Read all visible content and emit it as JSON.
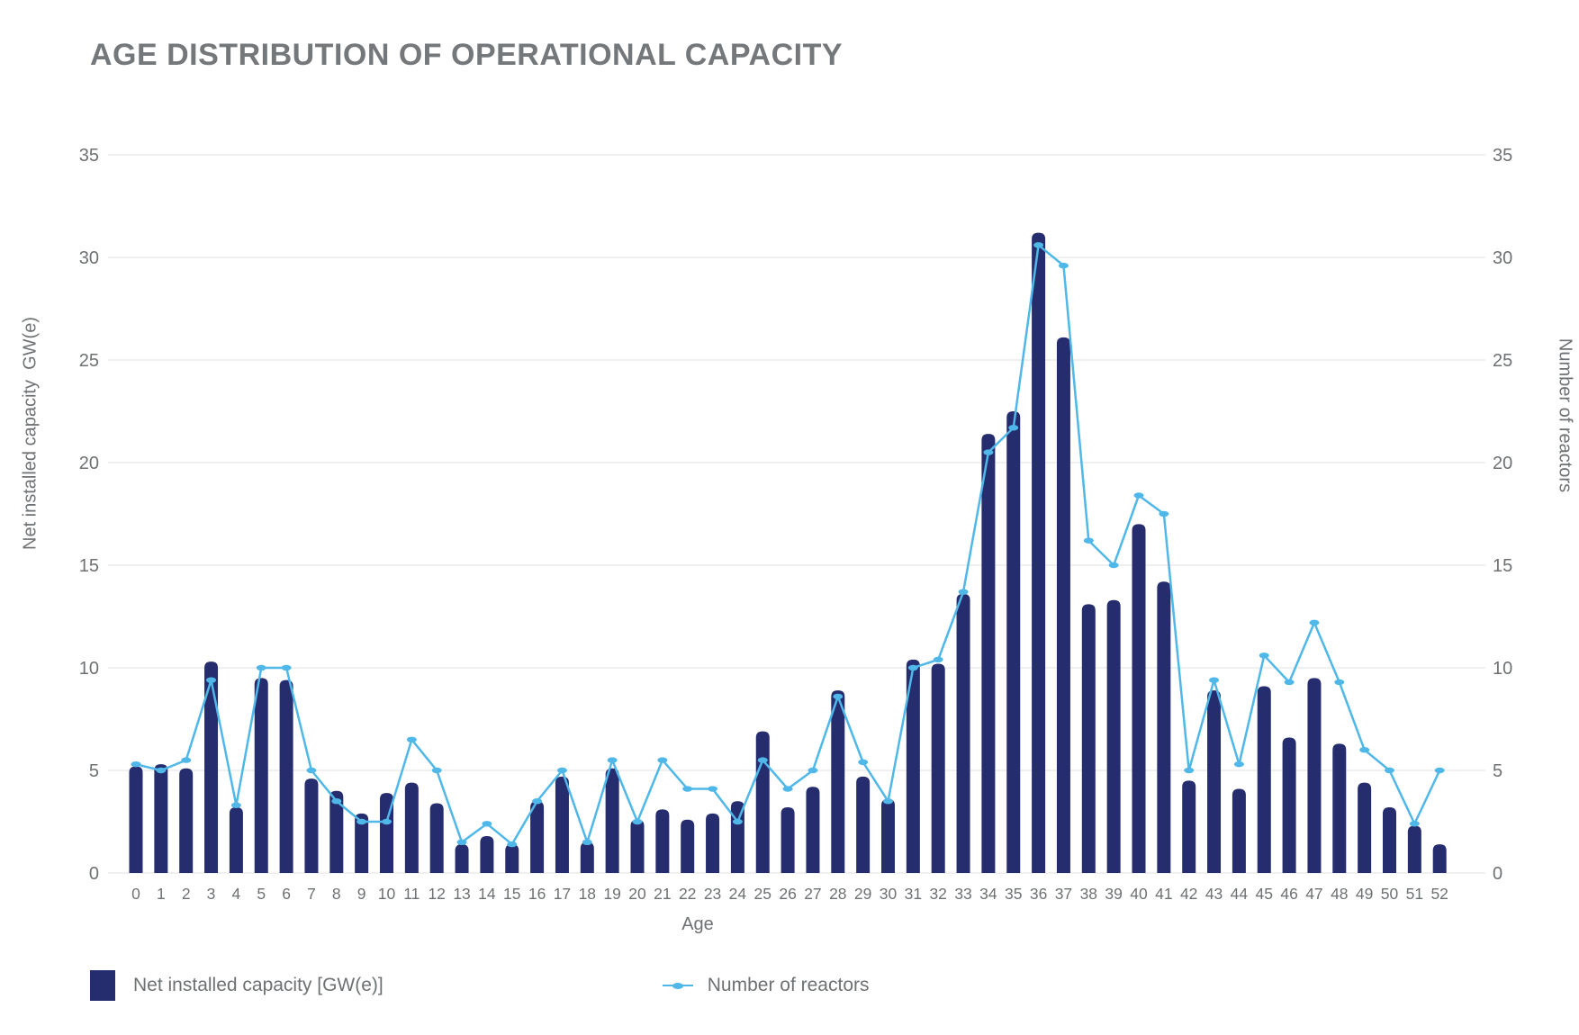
{
  "title": "AGE DISTRIBUTION OF OPERATIONAL CAPACITY",
  "colors": {
    "bar": "#262D6E",
    "line": "#4FB8E9",
    "title_text": "#75787B",
    "axis_text": "#6E7173",
    "gridline": "#E2E2E2"
  },
  "chart_data": {
    "type": "combo",
    "categories": [
      0,
      1,
      2,
      3,
      4,
      5,
      6,
      7,
      8,
      9,
      10,
      11,
      12,
      13,
      14,
      15,
      16,
      17,
      18,
      19,
      20,
      21,
      22,
      23,
      24,
      25,
      26,
      27,
      28,
      29,
      30,
      31,
      32,
      33,
      34,
      35,
      36,
      37,
      38,
      39,
      40,
      41,
      42,
      43,
      44,
      45,
      46,
      47,
      48,
      49,
      50,
      51,
      52
    ],
    "series": [
      {
        "name": "Net installed capacity [GW(e)]",
        "type": "bar",
        "values": [
          5.2,
          5.3,
          5.1,
          10.3,
          3.2,
          9.5,
          9.4,
          4.6,
          4.0,
          2.9,
          3.9,
          4.4,
          3.4,
          1.4,
          1.8,
          1.4,
          3.5,
          4.7,
          1.5,
          5.1,
          2.6,
          3.1,
          2.6,
          2.9,
          3.5,
          6.9,
          3.2,
          4.2,
          8.9,
          4.7,
          3.6,
          10.4,
          10.2,
          13.6,
          21.4,
          22.5,
          31.2,
          26.1,
          13.1,
          13.3,
          17.0,
          14.2,
          4.5,
          8.9,
          4.1,
          9.1,
          6.6,
          9.5,
          6.3,
          4.4,
          3.2,
          2.3,
          1.4
        ]
      },
      {
        "name": "Number of reactors",
        "type": "line",
        "values": [
          5.3,
          5.0,
          5.5,
          9.4,
          3.3,
          10.0,
          10.0,
          5.0,
          3.5,
          2.5,
          2.5,
          6.5,
          5.0,
          1.5,
          2.4,
          1.4,
          3.5,
          5.0,
          1.5,
          5.5,
          2.5,
          5.5,
          4.1,
          4.1,
          2.5,
          5.5,
          4.1,
          5.0,
          8.6,
          5.4,
          3.5,
          10.0,
          10.4,
          13.7,
          20.5,
          21.7,
          30.6,
          29.6,
          16.2,
          15.0,
          18.4,
          17.5,
          5.0,
          9.4,
          5.3,
          10.6,
          9.3,
          12.2,
          9.3,
          6.0,
          5.0,
          2.4,
          5.0
        ]
      }
    ],
    "xlabel": "Age",
    "ylabel_left": "Net installed capacity  GW(e)",
    "ylabel_right": "Number of reactors",
    "ylim": [
      0,
      35
    ],
    "yticks": [
      0,
      5,
      10,
      15,
      20,
      25,
      30,
      35
    ],
    "grid": true,
    "legend_position": "bottom-left"
  },
  "legend": {
    "items": [
      {
        "label": "Net installed capacity [GW(e)]",
        "swatch": "bar-square"
      },
      {
        "label": "Number of reactors",
        "swatch": "line-marker"
      }
    ]
  }
}
